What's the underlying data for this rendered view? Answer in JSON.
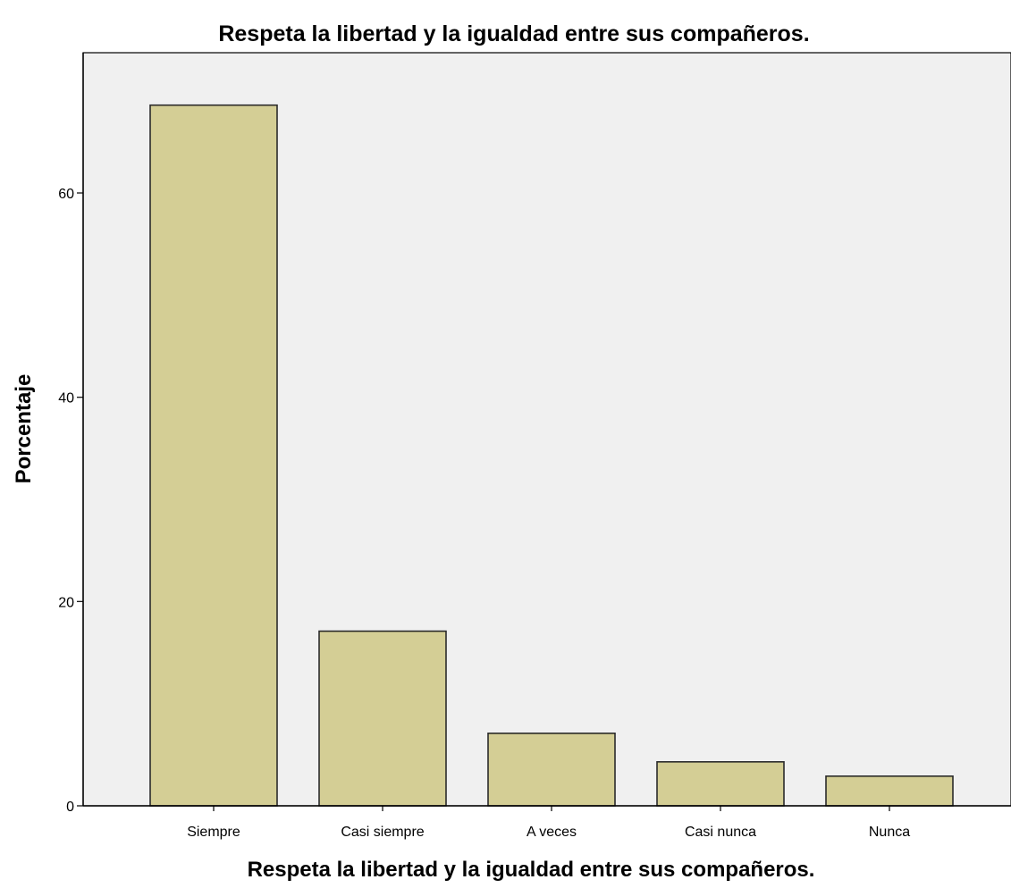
{
  "chart_data": {
    "type": "bar",
    "title": "Respeta la libertad y la igualdad entre sus compañeros.",
    "xlabel": "Respeta la libertad y la igualdad entre sus compañeros.",
    "ylabel": "Porcentaje",
    "categories": [
      "Siempre",
      "Casi siempre",
      "A veces",
      "Casi nunca",
      "Nunca"
    ],
    "values": [
      68.6,
      17.1,
      7.1,
      4.3,
      2.9
    ],
    "ylim": [
      0,
      70
    ],
    "yticks": [
      "0",
      "20",
      "40",
      "60"
    ],
    "grid": false,
    "legend": "none",
    "colors": {
      "bar_fill": "#d4ce95",
      "bar_stroke": "#2b2b2b",
      "plot_background": "#f0f0f0",
      "axis": "#000000"
    }
  }
}
